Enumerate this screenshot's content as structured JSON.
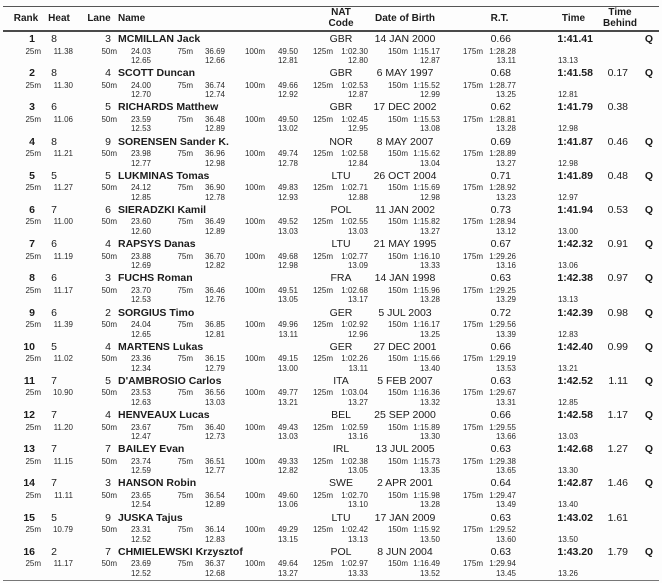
{
  "table": {
    "columns": {
      "rank": "Rank",
      "heat": "Heat",
      "lane": "Lane",
      "name": "Name",
      "nat_line1": "NAT",
      "nat_line2": "Code",
      "dob": "Date of Birth",
      "rt": "R.T.",
      "time": "Time",
      "behind_line1": "Time",
      "behind_line2": "Behind"
    },
    "split_labels": [
      "25m",
      "50m",
      "75m",
      "100m",
      "125m",
      "150m",
      "175m"
    ],
    "results": [
      {
        "rank": "1",
        "heat": "8",
        "lane": "3",
        "name": "MCMILLAN Jack",
        "nat": "GBR",
        "dob": "14 JAN 2000",
        "rt": "0.66",
        "time": "1:41.41",
        "behind": "",
        "q": "Q",
        "splits": [
          "11.38",
          "24.03",
          "36.69",
          "49.50",
          "1:02.30",
          "1:15.17",
          "1:28.28"
        ],
        "laps": [
          "12.65",
          "12.66",
          "12.81",
          "12.80",
          "12.87",
          "13.11",
          "13.13"
        ]
      },
      {
        "rank": "2",
        "heat": "8",
        "lane": "4",
        "name": "SCOTT Duncan",
        "nat": "GBR",
        "dob": "6 MAY 1997",
        "rt": "0.68",
        "time": "1:41.58",
        "behind": "0.17",
        "q": "Q",
        "splits": [
          "11.30",
          "24.00",
          "36.74",
          "49.66",
          "1:02.53",
          "1:15.52",
          "1:28.77"
        ],
        "laps": [
          "12.70",
          "12.74",
          "12.92",
          "12.87",
          "12.99",
          "13.25",
          "12.81"
        ]
      },
      {
        "rank": "3",
        "heat": "6",
        "lane": "5",
        "name": "RICHARDS Matthew",
        "nat": "GBR",
        "dob": "17 DEC 2002",
        "rt": "0.62",
        "time": "1:41.79",
        "behind": "0.38",
        "q": "",
        "splits": [
          "11.06",
          "23.59",
          "36.48",
          "49.50",
          "1:02.45",
          "1:15.53",
          "1:28.81"
        ],
        "laps": [
          "12.53",
          "12.89",
          "13.02",
          "12.95",
          "13.08",
          "13.28",
          "12.98"
        ]
      },
      {
        "rank": "4",
        "heat": "8",
        "lane": "9",
        "name": "SORENSEN Sander K.",
        "nat": "NOR",
        "dob": "8 MAY 2007",
        "rt": "0.69",
        "time": "1:41.87",
        "behind": "0.46",
        "q": "Q",
        "splits": [
          "11.21",
          "23.98",
          "36.96",
          "49.74",
          "1:02.58",
          "1:15.62",
          "1:28.89"
        ],
        "laps": [
          "12.77",
          "12.98",
          "12.78",
          "12.84",
          "13.04",
          "13.27",
          "12.98"
        ]
      },
      {
        "rank": "5",
        "heat": "5",
        "lane": "5",
        "name": "LUKMINAS Tomas",
        "nat": "LTU",
        "dob": "26 OCT 2004",
        "rt": "0.71",
        "time": "1:41.89",
        "behind": "0.48",
        "q": "Q",
        "splits": [
          "11.27",
          "24.12",
          "36.90",
          "49.83",
          "1:02.71",
          "1:15.69",
          "1:28.92"
        ],
        "laps": [
          "12.85",
          "12.78",
          "12.93",
          "12.88",
          "12.98",
          "13.23",
          "12.97"
        ]
      },
      {
        "rank": "6",
        "heat": "7",
        "lane": "6",
        "name": "SIERADZKI Kamil",
        "nat": "POL",
        "dob": "11 JAN 2002",
        "rt": "0.73",
        "time": "1:41.94",
        "behind": "0.53",
        "q": "Q",
        "splits": [
          "11.00",
          "23.60",
          "36.49",
          "49.52",
          "1:02.55",
          "1:15.82",
          "1:28.94"
        ],
        "laps": [
          "12.60",
          "12.89",
          "13.03",
          "13.03",
          "13.27",
          "13.12",
          "13.00"
        ]
      },
      {
        "rank": "7",
        "heat": "6",
        "lane": "4",
        "name": "RAPSYS Danas",
        "nat": "LTU",
        "dob": "21 MAY 1995",
        "rt": "0.67",
        "time": "1:42.32",
        "behind": "0.91",
        "q": "Q",
        "splits": [
          "11.19",
          "23.88",
          "36.70",
          "49.68",
          "1:02.77",
          "1:16.10",
          "1:29.26"
        ],
        "laps": [
          "12.69",
          "12.82",
          "12.98",
          "13.09",
          "13.33",
          "13.16",
          "13.06"
        ]
      },
      {
        "rank": "8",
        "heat": "6",
        "lane": "3",
        "name": "FUCHS Roman",
        "nat": "FRA",
        "dob": "14 JAN 1998",
        "rt": "0.63",
        "time": "1:42.38",
        "behind": "0.97",
        "q": "Q",
        "splits": [
          "11.17",
          "23.70",
          "36.46",
          "49.51",
          "1:02.68",
          "1:15.96",
          "1:29.25"
        ],
        "laps": [
          "12.53",
          "12.76",
          "13.05",
          "13.17",
          "13.28",
          "13.29",
          "13.13"
        ]
      },
      {
        "rank": "9",
        "heat": "6",
        "lane": "2",
        "name": "SORGIUS Timo",
        "nat": "GER",
        "dob": "5 JUL 2003",
        "rt": "0.72",
        "time": "1:42.39",
        "behind": "0.98",
        "q": "Q",
        "splits": [
          "11.39",
          "24.04",
          "36.85",
          "49.96",
          "1:02.92",
          "1:16.17",
          "1:29.56"
        ],
        "laps": [
          "12.65",
          "12.81",
          "13.11",
          "12.96",
          "13.25",
          "13.39",
          "12.83"
        ]
      },
      {
        "rank": "10",
        "heat": "5",
        "lane": "4",
        "name": "MARTENS Lukas",
        "nat": "GER",
        "dob": "27 DEC 2001",
        "rt": "0.66",
        "time": "1:42.40",
        "behind": "0.99",
        "q": "Q",
        "splits": [
          "11.02",
          "23.36",
          "36.15",
          "49.15",
          "1:02.26",
          "1:15.66",
          "1:29.19"
        ],
        "laps": [
          "12.34",
          "12.79",
          "13.00",
          "13.11",
          "13.40",
          "13.53",
          "13.21"
        ]
      },
      {
        "rank": "11",
        "heat": "7",
        "lane": "5",
        "name": "D'AMBROSIO Carlos",
        "nat": "ITA",
        "dob": "5 FEB 2007",
        "rt": "0.63",
        "time": "1:42.52",
        "behind": "1.11",
        "q": "Q",
        "splits": [
          "10.90",
          "23.53",
          "36.56",
          "49.77",
          "1:03.04",
          "1:16.36",
          "1:29.67"
        ],
        "laps": [
          "12.63",
          "13.03",
          "13.21",
          "13.27",
          "13.32",
          "13.31",
          "12.85"
        ]
      },
      {
        "rank": "12",
        "heat": "7",
        "lane": "4",
        "name": "HENVEAUX Lucas",
        "nat": "BEL",
        "dob": "25 SEP 2000",
        "rt": "0.66",
        "time": "1:42.58",
        "behind": "1.17",
        "q": "Q",
        "splits": [
          "11.20",
          "23.67",
          "36.40",
          "49.43",
          "1:02.59",
          "1:15.89",
          "1:29.55"
        ],
        "laps": [
          "12.47",
          "12.73",
          "13.03",
          "13.16",
          "13.30",
          "13.66",
          "13.03"
        ]
      },
      {
        "rank": "13",
        "heat": "7",
        "lane": "7",
        "name": "BAILEY Evan",
        "nat": "IRL",
        "dob": "13 JUL 2005",
        "rt": "0.63",
        "time": "1:42.68",
        "behind": "1.27",
        "q": "Q",
        "splits": [
          "11.15",
          "23.74",
          "36.51",
          "49.33",
          "1:02.38",
          "1:15.73",
          "1:29.38"
        ],
        "laps": [
          "12.59",
          "12.77",
          "12.82",
          "13.05",
          "13.35",
          "13.65",
          "13.30"
        ]
      },
      {
        "rank": "14",
        "heat": "7",
        "lane": "3",
        "name": "HANSON Robin",
        "nat": "SWE",
        "dob": "2 APR 2001",
        "rt": "0.64",
        "time": "1:42.87",
        "behind": "1.46",
        "q": "Q",
        "splits": [
          "11.11",
          "23.65",
          "36.54",
          "49.60",
          "1:02.70",
          "1:15.98",
          "1:29.47"
        ],
        "laps": [
          "12.54",
          "12.89",
          "13.06",
          "13.10",
          "13.28",
          "13.49",
          "13.40"
        ]
      },
      {
        "rank": "15",
        "heat": "5",
        "lane": "9",
        "name": "JUSKA Tajus",
        "nat": "LTU",
        "dob": "17 JAN 2009",
        "rt": "0.63",
        "time": "1:43.02",
        "behind": "1.61",
        "q": "",
        "splits": [
          "10.79",
          "23.31",
          "36.14",
          "49.29",
          "1:02.42",
          "1:15.92",
          "1:29.52"
        ],
        "laps": [
          "12.52",
          "12.83",
          "13.15",
          "13.13",
          "13.50",
          "13.60",
          "13.50"
        ]
      },
      {
        "rank": "16",
        "heat": "2",
        "lane": "7",
        "name": "CHMIELEWSKI Krzysztof",
        "nat": "POL",
        "dob": "8 JUN 2004",
        "rt": "0.63",
        "time": "1:43.20",
        "behind": "1.79",
        "q": "Q",
        "splits": [
          "11.17",
          "23.69",
          "36.37",
          "49.64",
          "1:02.97",
          "1:16.49",
          "1:29.94"
        ],
        "laps": [
          "12.52",
          "12.68",
          "13.27",
          "13.33",
          "13.52",
          "13.45",
          "13.26"
        ]
      }
    ]
  }
}
